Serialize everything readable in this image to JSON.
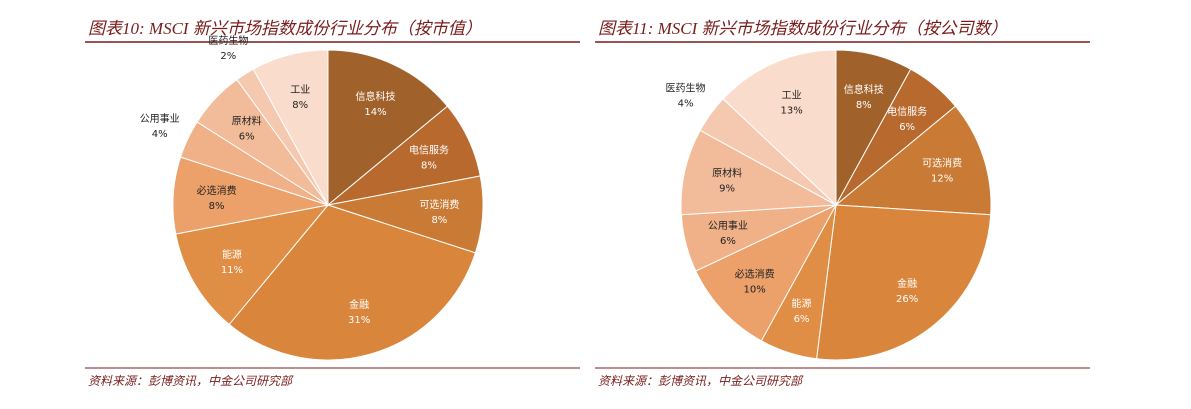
{
  "chart_data": [
    {
      "type": "pie",
      "title": "图表10: MSCI 新兴市场指数成份行业分布（按市值）",
      "source": "资料来源：彭博资讯，中金公司研究部",
      "categories": [
        "信息科技",
        "电信服务",
        "可选消费",
        "金融",
        "能源",
        "必选消费",
        "公用事业",
        "原材料",
        "医药生物",
        "工业"
      ],
      "values": [
        14,
        8,
        8,
        31,
        11,
        8,
        4,
        6,
        2,
        8
      ],
      "value_labels": [
        "14%",
        "8%",
        "8%",
        "31%",
        "11%",
        "8%",
        "4%",
        "6%",
        "2%",
        "8%"
      ],
      "colors": [
        "#a0612b",
        "#b8692e",
        "#c97a35",
        "#d9863c",
        "#e08e45",
        "#eca06a",
        "#f0b088",
        "#f2bb9a",
        "#f5c9b0",
        "#f9dccb"
      ]
    },
    {
      "type": "pie",
      "title": "图表11: MSCI 新兴市场指数成份行业分布（按公司数）",
      "source": "资料来源：彭博资讯，中金公司研究部",
      "categories": [
        "信息科技",
        "电信服务",
        "可选消费",
        "金融",
        "能源",
        "必选消费",
        "公用事业",
        "原材料",
        "医药生物",
        "工业"
      ],
      "values": [
        8,
        6,
        12,
        26,
        6,
        10,
        6,
        9,
        4,
        13
      ],
      "value_labels": [
        "8%",
        "6%",
        "12%",
        "26%",
        "6%",
        "10%",
        "6%",
        "9%",
        "4%",
        "13%"
      ],
      "colors": [
        "#a0612b",
        "#b8692e",
        "#c97a35",
        "#d9863c",
        "#e08e45",
        "#eca06a",
        "#f0b088",
        "#f2bb9a",
        "#f5c9b0",
        "#f9dccb"
      ]
    }
  ]
}
